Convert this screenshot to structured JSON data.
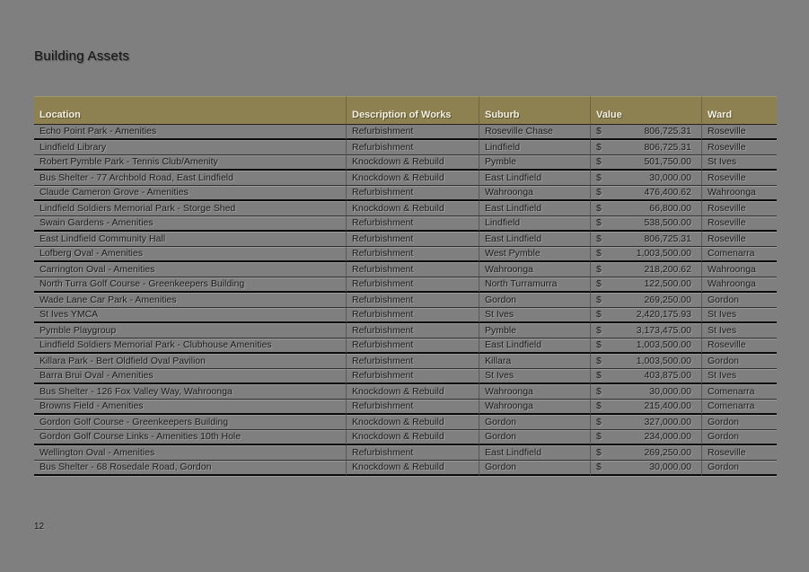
{
  "page": {
    "title": "Building Assets",
    "page_number": "12"
  },
  "colors": {
    "background": "#7f7f7f",
    "table_header_bg": "#8d8051",
    "table_header_text": "#f4f1e3",
    "body_text": "#1a1a1a"
  },
  "table": {
    "columns": [
      "Location",
      "Description of Works",
      "Suburb",
      "Value",
      "Ward"
    ],
    "currency_symbol": "$",
    "rows": [
      {
        "location": "Echo Point Park - Amenities",
        "works": "Refurbishment",
        "suburb": "Roseville Chase",
        "value": "806,725.31",
        "ward": "Roseville"
      },
      {
        "location": "Lindfield Library",
        "works": "Refurbishment",
        "suburb": "Lindfield",
        "value": "806,725.31",
        "ward": "Roseville"
      },
      {
        "location": "Robert Pymble Park - Tennis Club/Amenity",
        "works": "Knockdown & Rebuild",
        "suburb": "Pymble",
        "value": "501,750.00",
        "ward": "St Ives"
      },
      {
        "location": "Bus Shelter - 77 Archbold Road, East Lindfield",
        "works": "Knockdown & Rebuild",
        "suburb": "East Lindfield",
        "value": "30,000.00",
        "ward": "Roseville"
      },
      {
        "location": "Claude Cameron Grove - Amenities",
        "works": "Refurbishment",
        "suburb": "Wahroonga",
        "value": "476,400.62",
        "ward": "Wahroonga"
      },
      {
        "location": "Lindfield Soldiers Memorial Park - Storge Shed",
        "works": "Knockdown & Rebuild",
        "suburb": "East Lindfield",
        "value": "66,800.00",
        "ward": "Roseville"
      },
      {
        "location": "Swain Gardens - Amenities",
        "works": "Refurbishment",
        "suburb": "Lindfield",
        "value": "538,500.00",
        "ward": "Roseville"
      },
      {
        "location": "East Lindfield Community Hall",
        "works": "Refurbishment",
        "suburb": "East Lindfield",
        "value": "806,725.31",
        "ward": "Roseville"
      },
      {
        "location": "Lofberg Oval - Amenities",
        "works": "Refurbishment",
        "suburb": "West Pymble",
        "value": "1,003,500.00",
        "ward": "Comenarra"
      },
      {
        "location": "Carrington Oval - Amenities",
        "works": "Refurbishment",
        "suburb": "Wahroonga",
        "value": "218,200.62",
        "ward": "Wahroonga"
      },
      {
        "location": "North Turra Golf Course - Greenkeepers Building",
        "works": "Refurbishment",
        "suburb": "North Turramurra",
        "value": "122,500.00",
        "ward": "Wahroonga"
      },
      {
        "location": "Wade Lane Car Park - Amenities",
        "works": "Refurbishment",
        "suburb": "Gordon",
        "value": "269,250.00",
        "ward": "Gordon"
      },
      {
        "location": "St Ives YMCA",
        "works": "Refurbishment",
        "suburb": "St Ives",
        "value": "2,420,175.93",
        "ward": "St Ives"
      },
      {
        "location": "Pymble Playgroup",
        "works": "Refurbishment",
        "suburb": "Pymble",
        "value": "3,173,475.00",
        "ward": "St Ives"
      },
      {
        "location": "Lindfield Soldiers Memorial Park - Clubhouse Amenities",
        "works": "Refurbishment",
        "suburb": "East Lindfield",
        "value": "1,003,500.00",
        "ward": "Roseville"
      },
      {
        "location": "Killara Park - Bert Oldfield Oval Pavilion",
        "works": "Refurbishment",
        "suburb": "Killara",
        "value": "1,003,500.00",
        "ward": "Gordon"
      },
      {
        "location": "Barra Brui Oval - Amenities",
        "works": "Refurbishment",
        "suburb": "St Ives",
        "value": "403,875.00",
        "ward": "St Ives"
      },
      {
        "location": "Bus Shelter - 126 Fox Valley Way, Wahroonga",
        "works": "Knockdown & Rebuild",
        "suburb": "Wahroonga",
        "value": "30,000.00",
        "ward": "Comenarra"
      },
      {
        "location": "Browns Field - Amenities",
        "works": "Refurbishment",
        "suburb": "Wahroonga",
        "value": "215,400.00",
        "ward": "Comenarra"
      },
      {
        "location": "Gordon Golf Course - Greenkeepers Building",
        "works": "Knockdown & Rebuild",
        "suburb": "Gordon",
        "value": "327,000.00",
        "ward": "Gordon"
      },
      {
        "location": "Gordon Golf Course Links - Amenities 10th Hole",
        "works": "Knockdown & Rebuild",
        "suburb": "Gordon",
        "value": "234,000.00",
        "ward": "Gordon"
      },
      {
        "location": "Wellington Oval - Amenities",
        "works": "Refurbishment",
        "suburb": "East Lindfield",
        "value": "269,250.00",
        "ward": "Roseville"
      },
      {
        "location": "Bus Shelter - 68 Rosedale Road, Gordon",
        "works": "Knockdown & Rebuild",
        "suburb": "Gordon",
        "value": "30,000.00",
        "ward": "Gordon"
      }
    ]
  }
}
